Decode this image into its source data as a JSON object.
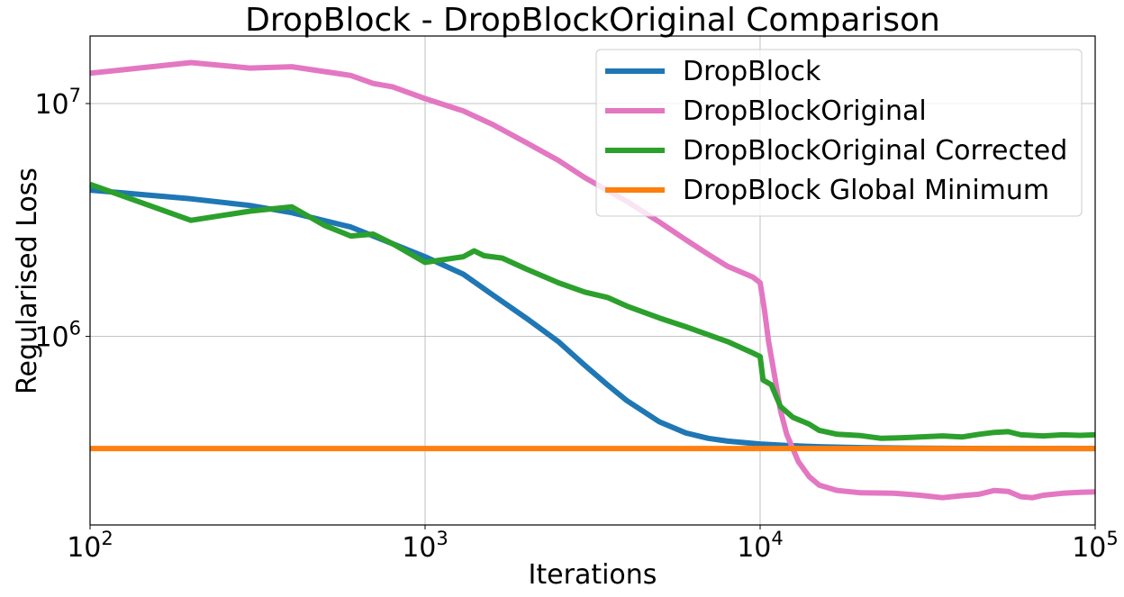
{
  "chart_data": {
    "type": "line",
    "title": "DropBlock - DropBlockOriginal Comparison",
    "xlabel": "Iterations",
    "ylabel": "Regularised Loss",
    "xscale": "log",
    "yscale": "log",
    "xlim": [
      100,
      100000
    ],
    "ylim": [
      155000,
      19500000
    ],
    "grid": true,
    "legend_position": "top-right",
    "x_ticks": [
      {
        "value": 100,
        "base": "10",
        "exp": "2"
      },
      {
        "value": 1000,
        "base": "10",
        "exp": "3"
      },
      {
        "value": 10000,
        "base": "10",
        "exp": "4"
      },
      {
        "value": 100000,
        "base": "10",
        "exp": "5"
      }
    ],
    "y_ticks": [
      {
        "value": 1000000,
        "base": "10",
        "exp": "6"
      },
      {
        "value": 10000000,
        "base": "10",
        "exp": "7"
      }
    ],
    "series": [
      {
        "name": "DropBlock",
        "color": "#1f77b4",
        "points": [
          [
            100,
            4250000
          ],
          [
            200,
            3900000
          ],
          [
            300,
            3650000
          ],
          [
            400,
            3400000
          ],
          [
            600,
            2950000
          ],
          [
            800,
            2500000
          ],
          [
            1000,
            2200000
          ],
          [
            1300,
            1850000
          ],
          [
            1600,
            1500000
          ],
          [
            2000,
            1200000
          ],
          [
            2500,
            950000
          ],
          [
            3000,
            750000
          ],
          [
            3500,
            620000
          ],
          [
            4000,
            530000
          ],
          [
            5000,
            430000
          ],
          [
            6000,
            385000
          ],
          [
            7000,
            365000
          ],
          [
            8000,
            355000
          ],
          [
            10000,
            345000
          ],
          [
            12000,
            340000
          ],
          [
            15000,
            336000
          ],
          [
            20000,
            333000
          ],
          [
            30000,
            331000
          ],
          [
            50000,
            330000
          ],
          [
            100000,
            330000
          ]
        ]
      },
      {
        "name": "DropBlockOriginal",
        "color": "#e377c2",
        "points": [
          [
            100,
            13500000
          ],
          [
            200,
            15000000
          ],
          [
            300,
            14200000
          ],
          [
            400,
            14400000
          ],
          [
            600,
            13200000
          ],
          [
            700,
            12200000
          ],
          [
            800,
            11800000
          ],
          [
            1000,
            10500000
          ],
          [
            1300,
            9300000
          ],
          [
            1600,
            8100000
          ],
          [
            2000,
            6800000
          ],
          [
            2500,
            5700000
          ],
          [
            3000,
            4800000
          ],
          [
            4000,
            3800000
          ],
          [
            5000,
            3100000
          ],
          [
            6000,
            2600000
          ],
          [
            7000,
            2250000
          ],
          [
            8000,
            2000000
          ],
          [
            9500,
            1800000
          ],
          [
            10000,
            1700000
          ],
          [
            10300,
            1300000
          ],
          [
            10600,
            950000
          ],
          [
            11000,
            700000
          ],
          [
            11500,
            480000
          ],
          [
            12000,
            380000
          ],
          [
            13000,
            290000
          ],
          [
            14000,
            250000
          ],
          [
            15000,
            230000
          ],
          [
            17000,
            218000
          ],
          [
            20000,
            213000
          ],
          [
            25000,
            212000
          ],
          [
            30000,
            208000
          ],
          [
            35000,
            203000
          ],
          [
            40000,
            207000
          ],
          [
            45000,
            210000
          ],
          [
            50000,
            218000
          ],
          [
            55000,
            216000
          ],
          [
            60000,
            205000
          ],
          [
            65000,
            203000
          ],
          [
            70000,
            208000
          ],
          [
            80000,
            212000
          ],
          [
            90000,
            214000
          ],
          [
            100000,
            215000
          ]
        ]
      },
      {
        "name": "DropBlockOriginal Corrected",
        "color": "#2ca02c",
        "points": [
          [
            100,
            4500000
          ],
          [
            200,
            3150000
          ],
          [
            300,
            3450000
          ],
          [
            400,
            3600000
          ],
          [
            500,
            3000000
          ],
          [
            600,
            2700000
          ],
          [
            700,
            2750000
          ],
          [
            800,
            2500000
          ],
          [
            1000,
            2080000
          ],
          [
            1300,
            2200000
          ],
          [
            1400,
            2330000
          ],
          [
            1500,
            2220000
          ],
          [
            1700,
            2170000
          ],
          [
            2000,
            1950000
          ],
          [
            2500,
            1700000
          ],
          [
            3000,
            1550000
          ],
          [
            3500,
            1470000
          ],
          [
            4000,
            1350000
          ],
          [
            5000,
            1200000
          ],
          [
            6000,
            1100000
          ],
          [
            8000,
            950000
          ],
          [
            9500,
            850000
          ],
          [
            10000,
            820000
          ],
          [
            10200,
            650000
          ],
          [
            10800,
            620000
          ],
          [
            11500,
            500000
          ],
          [
            12500,
            450000
          ],
          [
            14000,
            420000
          ],
          [
            15000,
            395000
          ],
          [
            17000,
            380000
          ],
          [
            20000,
            375000
          ],
          [
            23000,
            365000
          ],
          [
            26000,
            367000
          ],
          [
            30000,
            370000
          ],
          [
            35000,
            374000
          ],
          [
            40000,
            370000
          ],
          [
            45000,
            380000
          ],
          [
            50000,
            387000
          ],
          [
            55000,
            390000
          ],
          [
            60000,
            378000
          ],
          [
            70000,
            374000
          ],
          [
            80000,
            378000
          ],
          [
            90000,
            376000
          ],
          [
            100000,
            378000
          ]
        ]
      },
      {
        "name": "DropBlock Global Minimum",
        "color": "#ff7f0e",
        "points": [
          [
            100,
            330000
          ],
          [
            100000,
            330000
          ]
        ]
      }
    ]
  }
}
